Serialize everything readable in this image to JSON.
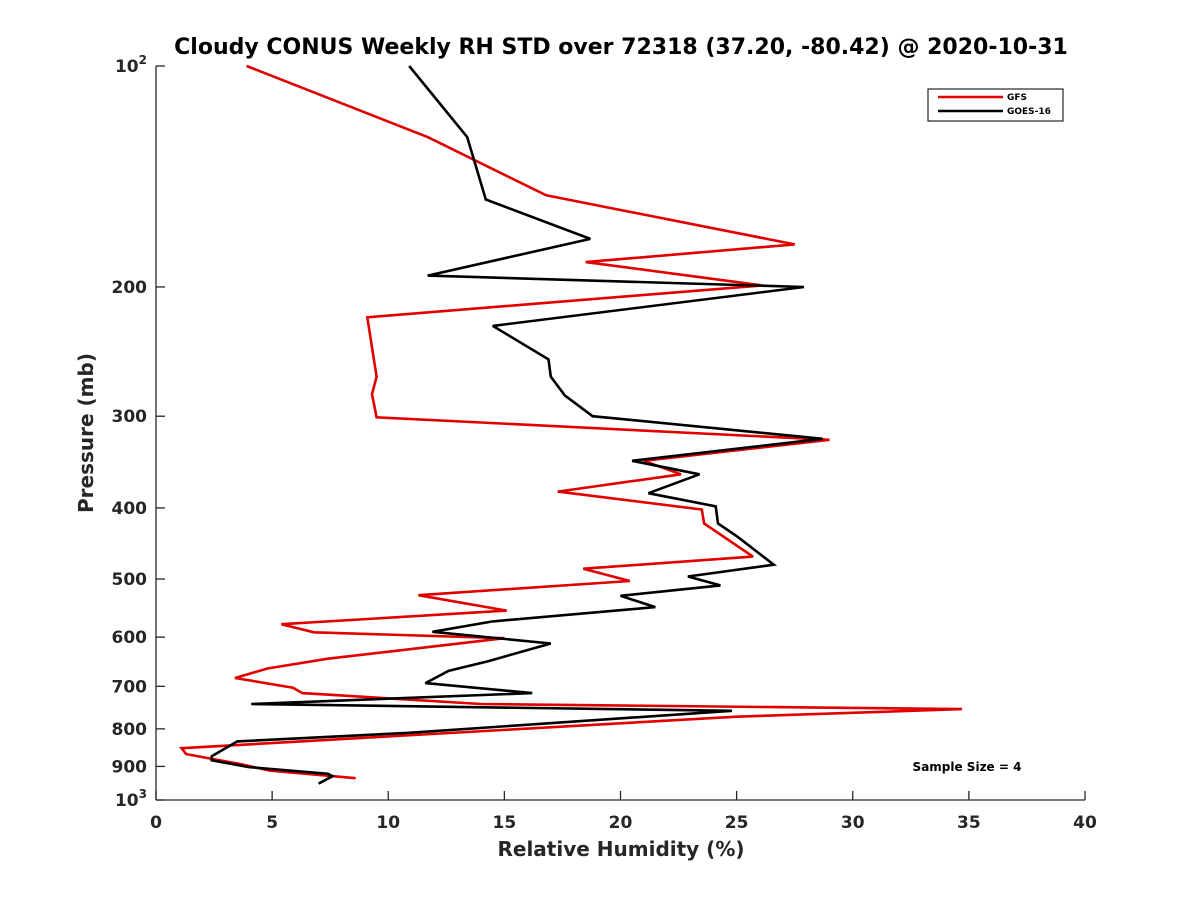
{
  "chart_data": {
    "type": "line",
    "title": "Cloudy CONUS Weekly RH STD over 72318 (37.20, -80.42) @ 2020-10-31",
    "xlabel": "Relative Humidity (%)",
    "ylabel": "Pressure (mb)",
    "xlim": [
      0,
      40
    ],
    "ylim": [
      100,
      1000
    ],
    "yscale": "log",
    "y_reversed": true,
    "grid": false,
    "x_ticks": [
      0,
      5,
      10,
      15,
      20,
      25,
      30,
      35,
      40
    ],
    "x_tick_labels": [
      "0",
      "5",
      "10",
      "15",
      "20",
      "25",
      "30",
      "35",
      "40"
    ],
    "y_ticks": [
      {
        "value": 100,
        "base": "10",
        "exp": "2"
      },
      {
        "value": 200,
        "base": "200",
        "exp": ""
      },
      {
        "value": 300,
        "base": "300",
        "exp": ""
      },
      {
        "value": 400,
        "base": "400",
        "exp": ""
      },
      {
        "value": 500,
        "base": "500",
        "exp": ""
      },
      {
        "value": 600,
        "base": "600",
        "exp": ""
      },
      {
        "value": 700,
        "base": "700",
        "exp": ""
      },
      {
        "value": 800,
        "base": "800",
        "exp": ""
      },
      {
        "value": 900,
        "base": "900",
        "exp": ""
      },
      {
        "value": 1000,
        "base": "10",
        "exp": "3"
      }
    ],
    "legend_position": "top-right",
    "annotation": "Sample Size = 4",
    "series": [
      {
        "name": "GFS",
        "color": "#e00000",
        "points": [
          [
            3.9,
            100
          ],
          [
            11.7,
            125
          ],
          [
            16.8,
            150
          ],
          [
            27.5,
            175
          ],
          [
            18.5,
            185
          ],
          [
            26.1,
            199
          ],
          [
            9.1,
            220
          ],
          [
            9.5,
            265
          ],
          [
            9.3,
            280
          ],
          [
            9.5,
            301
          ],
          [
            29.0,
            323
          ],
          [
            21.0,
            345
          ],
          [
            22.6,
            360
          ],
          [
            17.3,
            380
          ],
          [
            23.5,
            402
          ],
          [
            23.6,
            420
          ],
          [
            25.7,
            466
          ],
          [
            18.4,
            484
          ],
          [
            20.4,
            503
          ],
          [
            11.3,
            526
          ],
          [
            15.1,
            552
          ],
          [
            5.4,
            576
          ],
          [
            6.8,
            591
          ],
          [
            15.0,
            602
          ],
          [
            7.4,
            642
          ],
          [
            4.8,
            662
          ],
          [
            3.4,
            682
          ],
          [
            5.9,
            703
          ],
          [
            6.3,
            715
          ],
          [
            14.0,
            740
          ],
          [
            34.7,
            752
          ],
          [
            25.0,
            770
          ],
          [
            1.1,
            850
          ],
          [
            1.3,
            866
          ],
          [
            3.6,
            893
          ],
          [
            4.9,
            912
          ],
          [
            8.6,
            934
          ]
        ]
      },
      {
        "name": "GOES-16",
        "color": "#000000",
        "points": [
          [
            10.9,
            100
          ],
          [
            13.4,
            125
          ],
          [
            14.2,
            152
          ],
          [
            18.7,
            172
          ],
          [
            11.7,
            193
          ],
          [
            27.9,
            200
          ],
          [
            14.5,
            226
          ],
          [
            16.9,
            251
          ],
          [
            17.0,
            265
          ],
          [
            17.6,
            281
          ],
          [
            18.8,
            300
          ],
          [
            28.7,
            322
          ],
          [
            20.5,
            345
          ],
          [
            23.4,
            360
          ],
          [
            21.2,
            382
          ],
          [
            24.1,
            398
          ],
          [
            24.2,
            420
          ],
          [
            25.0,
            437
          ],
          [
            26.6,
            478
          ],
          [
            22.9,
            496
          ],
          [
            24.3,
            510
          ],
          [
            20.0,
            527
          ],
          [
            21.5,
            546
          ],
          [
            14.5,
            571
          ],
          [
            11.9,
            590
          ],
          [
            17.0,
            612
          ],
          [
            14.3,
            647
          ],
          [
            12.6,
            667
          ],
          [
            11.6,
            693
          ],
          [
            16.2,
            715
          ],
          [
            4.1,
            740
          ],
          [
            24.8,
            756
          ],
          [
            10.9,
            810
          ],
          [
            3.5,
            832
          ],
          [
            2.4,
            872
          ],
          [
            2.4,
            883
          ],
          [
            4.0,
            902
          ],
          [
            7.4,
            921
          ],
          [
            7.6,
            928
          ],
          [
            7.0,
            950
          ]
        ]
      }
    ]
  }
}
